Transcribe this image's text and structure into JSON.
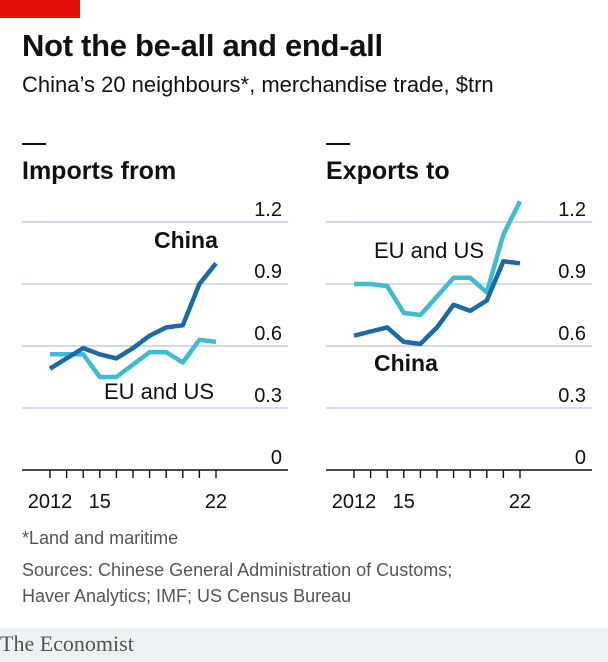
{
  "header": {
    "title": "Not the be-all and end-all",
    "subtitle": "China’s 20 neighbours*, merchandise trade, $trn"
  },
  "colors": {
    "accent": "#e3120b",
    "china": "#1b6aa5",
    "eu_us": "#3ebcd2",
    "gridline": "#b7c6cf",
    "baseline": "#111111"
  },
  "chart_data": [
    {
      "type": "line",
      "title": "Imports from",
      "ylim": [
        0,
        1.2
      ],
      "yticks": [
        0,
        0.3,
        0.6,
        0.9,
        1.2
      ],
      "ytick_labels": [
        "0",
        "0.3",
        "0.6",
        "0.9",
        "1.2"
      ],
      "xlim": [
        2012,
        2022
      ],
      "xticks": [
        2012,
        2015,
        2022
      ],
      "xtick_labels": [
        "2012",
        "15",
        "22"
      ],
      "grid": true,
      "series": [
        {
          "name": "China",
          "color": "#1b6aa5",
          "x": [
            2012,
            2013,
            2014,
            2015,
            2016,
            2017,
            2018,
            2019,
            2020,
            2021,
            2022
          ],
          "y": [
            0.49,
            0.54,
            0.59,
            0.56,
            0.54,
            0.59,
            0.65,
            0.69,
            0.7,
            0.9,
            1.0
          ]
        },
        {
          "name": "EU and US",
          "color": "#3ebcd2",
          "x": [
            2012,
            2013,
            2014,
            2015,
            2016,
            2017,
            2018,
            2019,
            2020,
            2021,
            2022
          ],
          "y": [
            0.56,
            0.56,
            0.56,
            0.45,
            0.45,
            0.51,
            0.57,
            0.57,
            0.52,
            0.63,
            0.62
          ]
        }
      ]
    },
    {
      "type": "line",
      "title": "Exports to",
      "ylim": [
        0,
        1.2
      ],
      "yticks": [
        0,
        0.3,
        0.6,
        0.9,
        1.2
      ],
      "ytick_labels": [
        "0",
        "0.3",
        "0.6",
        "0.9",
        "1.2"
      ],
      "xlim": [
        2012,
        2022
      ],
      "xticks": [
        2012,
        2015,
        2022
      ],
      "xtick_labels": [
        "2012",
        "15",
        "22"
      ],
      "grid": true,
      "series": [
        {
          "name": "China",
          "color": "#1b6aa5",
          "x": [
            2012,
            2013,
            2014,
            2015,
            2016,
            2017,
            2018,
            2019,
            2020,
            2021,
            2022
          ],
          "y": [
            0.65,
            0.67,
            0.69,
            0.62,
            0.61,
            0.69,
            0.8,
            0.77,
            0.82,
            1.01,
            1.0
          ]
        },
        {
          "name": "EU and US",
          "color": "#3ebcd2",
          "x": [
            2012,
            2013,
            2014,
            2015,
            2016,
            2017,
            2018,
            2019,
            2020,
            2021,
            2022
          ],
          "y": [
            0.9,
            0.9,
            0.89,
            0.76,
            0.75,
            0.84,
            0.93,
            0.93,
            0.86,
            1.14,
            1.3
          ]
        }
      ]
    }
  ],
  "footer": {
    "footnote": "*Land and maritime",
    "sources_line1": "Sources: Chinese General Administration of Customs;",
    "sources_line2": "Haver Analytics; IMF; US Census Bureau",
    "brand": "The Economist"
  }
}
